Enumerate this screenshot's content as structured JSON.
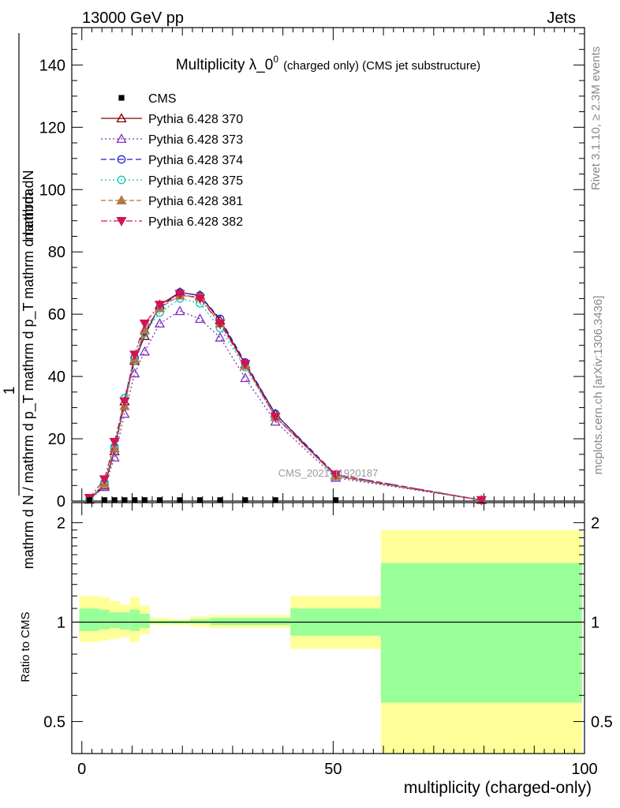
{
  "header": {
    "energy_label": "13000 GeV pp",
    "category_label": "Jets"
  },
  "side_labels": {
    "rivet": "Rivet 3.1.10, ≥ 2.3M events",
    "mcplots": "mcplots.cern.ch [arXiv:1306.3436]"
  },
  "watermark": "CMS_2021_I1920187",
  "chart_data": [
    {
      "type": "line",
      "title": "Multiplicity λ_0⁰ (charged only) (CMS jet substructure)",
      "title_main": "Multiplicity λ_0",
      "title_sup": "0",
      "title_rest": "(charged only) (CMS jet substructure)",
      "ylabel_top": "mathrm dN",
      "ylabel_bottom": "mathrm d p_T mathrm d lambda",
      "ylabel_full": "mathrm d N / mathrm d p_T mathrm d p_T mathrm d lambda",
      "ylabel_one": "1",
      "ylim": [
        0,
        152
      ],
      "xlim": [
        -2,
        100
      ],
      "yticks": [
        0,
        20,
        40,
        60,
        80,
        100,
        120,
        140
      ],
      "x": [
        1.5,
        4.5,
        6.5,
        8.5,
        10.5,
        12.5,
        15.5,
        19.5,
        23.5,
        27.5,
        32.5,
        38.5,
        50.5,
        79.5
      ],
      "cms": {
        "name": "CMS",
        "values": [
          0.3,
          0.3,
          0.3,
          0.3,
          0.3,
          0.3,
          0.3,
          0.3,
          0.3,
          0.3,
          0.3,
          0.3,
          0.3,
          0.0
        ]
      },
      "series": [
        {
          "name": "Pythia 6.428 370",
          "color": "#800000",
          "marker": "triangle-open",
          "dash": "",
          "values": [
            0.5,
            5,
            16,
            32,
            45,
            53,
            63,
            67,
            66,
            58,
            44,
            28,
            8,
            0.3
          ]
        },
        {
          "name": "Pythia 6.428 373",
          "color": "#7b2fbe",
          "marker": "triangle-open",
          "dash": "2,3",
          "values": [
            0.4,
            4.5,
            14,
            28,
            41,
            48,
            57,
            61,
            58.5,
            52.5,
            39.5,
            25.5,
            7.5,
            0.3
          ]
        },
        {
          "name": "Pythia 6.428 374",
          "color": "#1e1ed0",
          "marker": "circle-open",
          "dash": "7,4",
          "values": [
            0.5,
            5.5,
            17,
            33,
            46,
            54,
            62,
            67,
            66,
            58.5,
            44.5,
            28,
            8.5,
            0.3
          ]
        },
        {
          "name": "Pythia 6.428 375",
          "color": "#00c8b4",
          "marker": "circle-open",
          "dash": "2,3",
          "values": [
            0.5,
            6,
            17.5,
            33,
            45,
            54,
            60.5,
            65,
            63.5,
            55.5,
            43,
            27,
            8,
            0.3
          ]
        },
        {
          "name": "Pythia 6.428 381",
          "color": "#b07845",
          "marker": "triangle-filled",
          "dash": "6,3",
          "values": [
            0.5,
            5.5,
            17,
            30.5,
            45.5,
            55,
            62,
            66,
            65.5,
            57,
            43.5,
            27,
            8,
            0.3
          ]
        },
        {
          "name": "Pythia 6.428 382",
          "color": "#d21450",
          "marker": "triangle-down-filled",
          "dash": "8,3,2,3",
          "values": [
            1,
            7,
            19,
            32,
            47,
            57,
            63,
            66.5,
            65,
            57,
            44,
            27,
            8.5,
            0.3
          ]
        }
      ]
    },
    {
      "type": "area",
      "ylabel": "Ratio to CMS",
      "ylim": [
        0.4,
        2.3
      ],
      "yscale": "log",
      "yticks": [
        0.5,
        1,
        2
      ],
      "xlim": [
        -2,
        100
      ],
      "xticks": [
        0,
        50,
        100
      ],
      "xlabel": "multiplicity (charged-only)",
      "bins": [
        {
          "x0": -0.5,
          "x1": 3.5,
          "inner": [
            0.94,
            1.1
          ],
          "outer": [
            0.87,
            1.2
          ]
        },
        {
          "x0": 3.5,
          "x1": 5.5,
          "inner": [
            0.95,
            1.09
          ],
          "outer": [
            0.88,
            1.19
          ]
        },
        {
          "x0": 5.5,
          "x1": 7.5,
          "inner": [
            0.96,
            1.07
          ],
          "outer": [
            0.89,
            1.16
          ]
        },
        {
          "x0": 7.5,
          "x1": 9.5,
          "inner": [
            0.95,
            1.07
          ],
          "outer": [
            0.9,
            1.13
          ]
        },
        {
          "x0": 9.5,
          "x1": 11.5,
          "inner": [
            0.94,
            1.09
          ],
          "outer": [
            0.87,
            1.19
          ]
        },
        {
          "x0": 11.5,
          "x1": 13.5,
          "inner": [
            0.96,
            1.06
          ],
          "outer": [
            0.92,
            1.12
          ]
        },
        {
          "x0": 13.5,
          "x1": 17.5,
          "inner": [
            0.99,
            1.01
          ],
          "outer": [
            0.98,
            1.03
          ]
        },
        {
          "x0": 17.5,
          "x1": 21.5,
          "inner": [
            0.99,
            1.01
          ],
          "outer": [
            0.98,
            1.02
          ]
        },
        {
          "x0": 21.5,
          "x1": 25.5,
          "inner": [
            0.99,
            1.02
          ],
          "outer": [
            0.97,
            1.04
          ]
        },
        {
          "x0": 25.5,
          "x1": 29.5,
          "inner": [
            0.98,
            1.03
          ],
          "outer": [
            0.96,
            1.05
          ]
        },
        {
          "x0": 29.5,
          "x1": 41.5,
          "inner": [
            0.98,
            1.03
          ],
          "outer": [
            0.96,
            1.05
          ]
        },
        {
          "x0": 41.5,
          "x1": 59.5,
          "inner": [
            0.91,
            1.1
          ],
          "outer": [
            0.83,
            1.2
          ]
        },
        {
          "x0": 59.5,
          "x1": 99.5,
          "inner": [
            0.57,
            1.51
          ],
          "outer": [
            0.4,
            1.9
          ]
        }
      ],
      "band_colors": {
        "inner": "#99ff99",
        "outer": "#ffff99"
      }
    }
  ]
}
